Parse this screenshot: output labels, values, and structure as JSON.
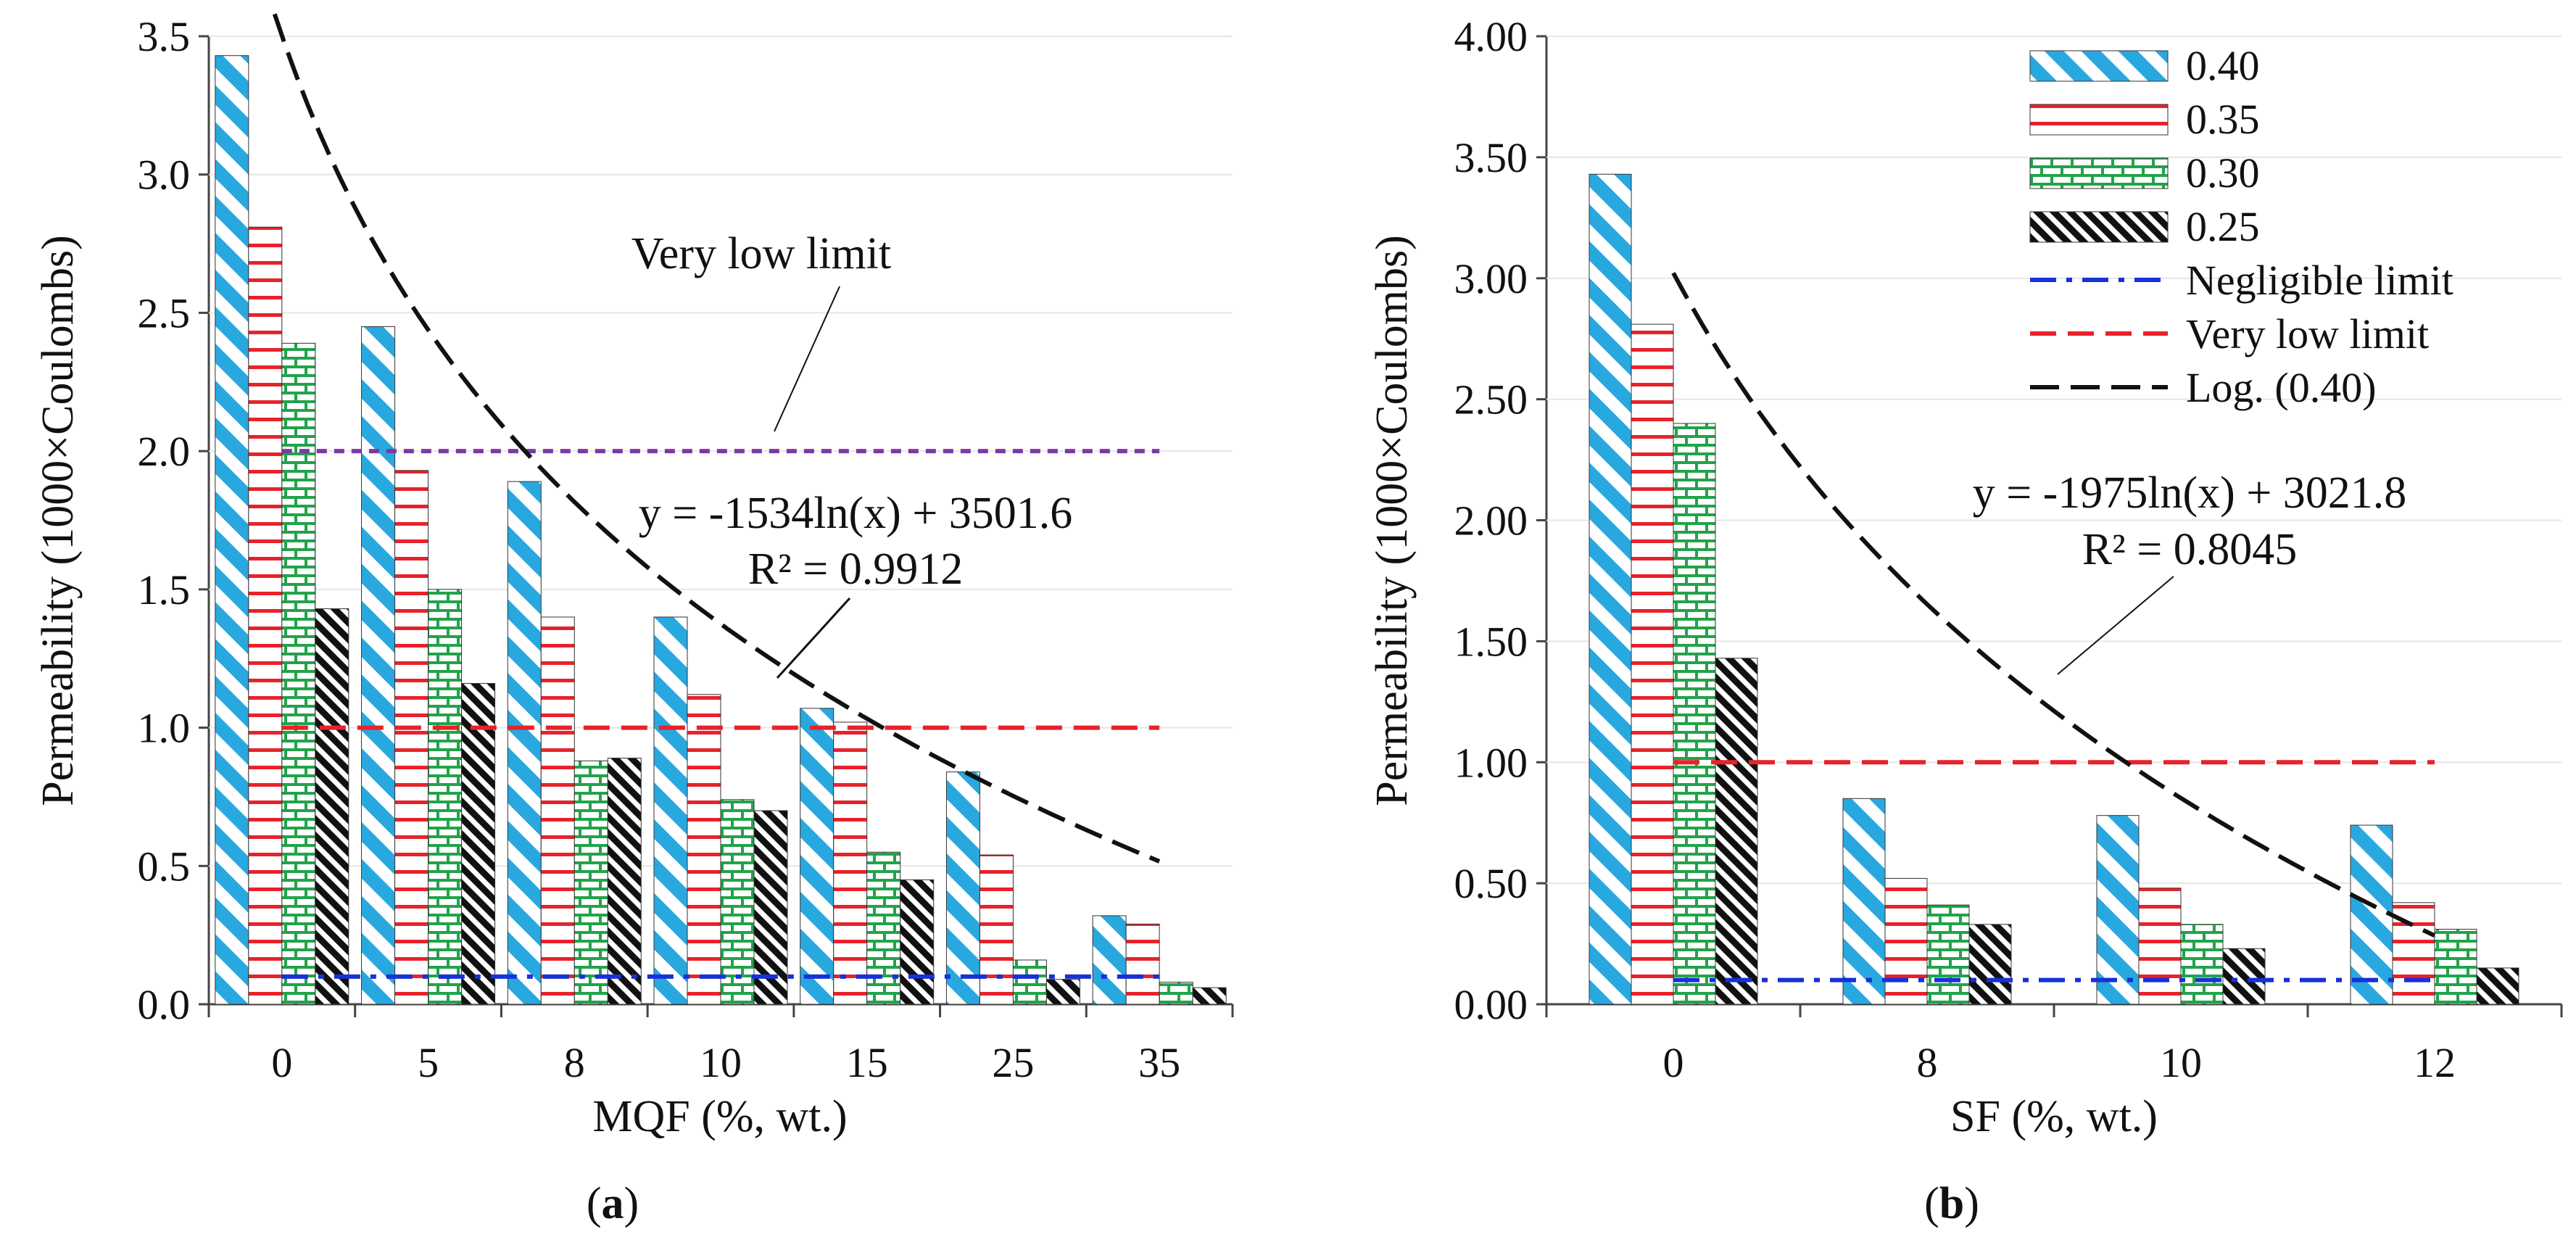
{
  "colors": {
    "s040": "#29a8e0",
    "s035": "#e8222b",
    "s030": "#22a34a",
    "s025": "#111111",
    "negligible": "#1631d8",
    "very_low_a": "#7b3aa6",
    "very_low": "#e8222b",
    "log": "#111111"
  },
  "chart_data": [
    {
      "type": "bar",
      "panel": "a",
      "caption_open": "(",
      "caption_letter": "a",
      "caption_close": ")",
      "xlabel": "MQF (%, wt.)",
      "ylabel": "Permeability  (1000×Coulombs)",
      "ylim": [
        0,
        3.5
      ],
      "yticks": [
        "0.0",
        "0.5",
        "1.0",
        "1.5",
        "2.0",
        "2.5",
        "3.0",
        "3.5"
      ],
      "categories": [
        "0",
        "5",
        "8",
        "10",
        "15",
        "25",
        "35"
      ],
      "series": [
        {
          "name": "0.40",
          "values": [
            3.43,
            2.45,
            1.89,
            1.4,
            1.07,
            0.84,
            0.32
          ]
        },
        {
          "name": "0.35",
          "values": [
            2.81,
            1.93,
            1.4,
            1.12,
            1.02,
            0.54,
            0.29
          ]
        },
        {
          "name": "0.30",
          "values": [
            2.39,
            1.5,
            0.88,
            0.74,
            0.55,
            0.16,
            0.08
          ]
        },
        {
          "name": "0.25",
          "values": [
            1.43,
            1.16,
            0.89,
            0.7,
            0.45,
            0.09,
            0.06
          ]
        }
      ],
      "negligible_limit": 0.1,
      "very_low_limit": 2.0,
      "second_limit": 1.0,
      "log_fit": {
        "a": -1.534,
        "b": 3.5016,
        "x_start": 0.95,
        "x_end": 7.0
      },
      "annotations": {
        "limit_label": "Very low limit",
        "equation": "y = -1534ln(x) + 3501.6",
        "r2": "R² = 0.9912"
      }
    },
    {
      "type": "bar",
      "panel": "b",
      "caption_open": "(",
      "caption_letter": "b",
      "caption_close": ")",
      "xlabel": "SF (%, wt.)",
      "ylabel": "Permeability  (1000×Coulombs)",
      "ylim": [
        0,
        4.0
      ],
      "yticks": [
        "0.00",
        "0.50",
        "1.00",
        "1.50",
        "2.00",
        "2.50",
        "3.00",
        "3.50",
        "4.00"
      ],
      "categories": [
        "0",
        "8",
        "10",
        "12"
      ],
      "series": [
        {
          "name": "0.40",
          "values": [
            3.43,
            0.85,
            0.78,
            0.74
          ]
        },
        {
          "name": "0.35",
          "values": [
            2.81,
            0.52,
            0.48,
            0.42
          ]
        },
        {
          "name": "0.30",
          "values": [
            2.4,
            0.41,
            0.33,
            0.31
          ]
        },
        {
          "name": "0.25",
          "values": [
            1.43,
            0.33,
            0.23,
            0.15
          ]
        }
      ],
      "negligible_limit": 0.1,
      "very_low_limit": 1.0,
      "log_fit": {
        "a": -1.975,
        "b": 3.0218,
        "x_start": 1.0,
        "x_end": 4.0
      },
      "legend": {
        "placement": "top-right",
        "entries": [
          "0.40",
          "0.35",
          "0.30",
          "0.25",
          "Negligible limit",
          "Very low limit",
          "Log. (0.40)"
        ]
      },
      "annotations": {
        "equation": "y = -1975ln(x) + 3021.8",
        "r2": "R² = 0.8045"
      }
    }
  ]
}
